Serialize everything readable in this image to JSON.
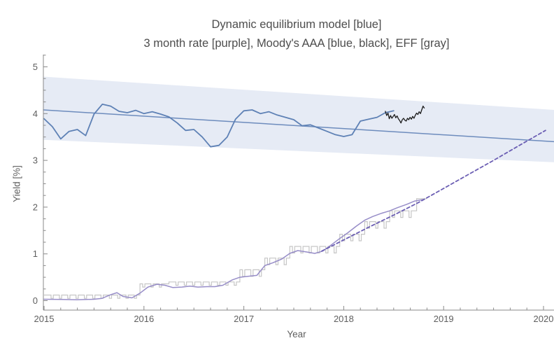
{
  "chart_data": {
    "type": "line",
    "title": "Dynamic equilibrium model [blue]",
    "subtitle": "3 month rate [purple], Moody's AAA [blue, black], EFF [gray]",
    "xlabel": "Year",
    "ylabel": "Yield [%]",
    "xlim": [
      2014.993,
      2020.105
    ],
    "ylim": [
      -0.2,
      5.26
    ],
    "x_major_ticks": [
      "2015",
      "2016",
      "2017",
      "2018",
      "2019",
      "2020"
    ],
    "x_major_values": [
      2015,
      2016,
      2017,
      2018,
      2019,
      2020
    ],
    "x_minor_step": 0.1666667,
    "y_major_ticks": [
      "0",
      "1",
      "2",
      "3",
      "4",
      "5"
    ],
    "y_major_values": [
      0,
      1,
      2,
      3,
      4,
      5
    ],
    "y_minor_step": 0.25,
    "grid": "off",
    "legend": "encoded in title text",
    "colors": {
      "band": "#e6ebf5",
      "trend_blue": "#6d8cbd",
      "moodys_blue": "#5e81b5",
      "moodys_black": "#1c1c1c",
      "rate3m_purple": "#978dc8",
      "model_purple_dashed": "#6c5fb4",
      "eff_gray": "#c6c6c6",
      "axis": "#8a8a8a",
      "tick_label": "#5f5f5f",
      "title_text": "#4d4d4d"
    },
    "band": {
      "name": "model-uncertainty-band",
      "x": [
        2014.993,
        2020.105
      ],
      "top": [
        4.79,
        4.08
      ],
      "bottom": [
        3.44,
        2.96
      ]
    },
    "trend": {
      "name": "dynamic-equilibrium-trend",
      "x": [
        2014.993,
        2020.105
      ],
      "y": [
        4.08,
        3.4
      ]
    },
    "moodys_monthly": {
      "name": "moodys-aaa-monthly",
      "start": 2015.0,
      "step": 0.0833333,
      "values": [
        3.89,
        3.72,
        3.46,
        3.62,
        3.66,
        3.53,
        3.99,
        4.2,
        4.16,
        4.05,
        4.02,
        4.07,
        4.0,
        4.04,
        3.99,
        3.93,
        3.8,
        3.64,
        3.66,
        3.5,
        3.29,
        3.32,
        3.5,
        3.88,
        4.06,
        4.08,
        4.0,
        4.04,
        3.97,
        3.92,
        3.87,
        3.74,
        3.76,
        3.69,
        3.62,
        3.55,
        3.51,
        3.55,
        3.84,
        3.88,
        3.92,
        4.02,
        4.06
      ]
    },
    "moodys_daily": {
      "name": "moodys-aaa-daily",
      "start": 2018.417,
      "step": 0.013,
      "values": [
        4.05,
        3.96,
        4.01,
        3.89,
        3.96,
        3.9,
        3.94,
        3.98,
        3.91,
        3.95,
        3.89,
        3.85,
        3.8,
        3.87,
        3.9,
        3.86,
        3.84,
        3.9,
        3.87,
        3.92,
        3.88,
        3.94,
        3.9,
        3.96,
        4.01,
        3.98,
        4.04,
        4.0,
        4.08,
        4.16,
        4.12
      ]
    },
    "rate3m": {
      "name": "three-month-rate",
      "points": [
        [
          2015.0,
          0.03
        ],
        [
          2015.17,
          0.025
        ],
        [
          2015.33,
          0.02
        ],
        [
          2015.5,
          0.03
        ],
        [
          2015.58,
          0.05
        ],
        [
          2015.67,
          0.13
        ],
        [
          2015.73,
          0.17
        ],
        [
          2015.79,
          0.09
        ],
        [
          2015.88,
          0.06
        ],
        [
          2015.96,
          0.16
        ],
        [
          2016.04,
          0.29
        ],
        [
          2016.13,
          0.35
        ],
        [
          2016.21,
          0.33
        ],
        [
          2016.29,
          0.28
        ],
        [
          2016.38,
          0.29
        ],
        [
          2016.46,
          0.31
        ],
        [
          2016.54,
          0.29
        ],
        [
          2016.63,
          0.3
        ],
        [
          2016.71,
          0.3
        ],
        [
          2016.79,
          0.33
        ],
        [
          2016.88,
          0.44
        ],
        [
          2016.96,
          0.5
        ],
        [
          2017.04,
          0.52
        ],
        [
          2017.13,
          0.54
        ],
        [
          2017.21,
          0.75
        ],
        [
          2017.29,
          0.81
        ],
        [
          2017.38,
          0.89
        ],
        [
          2017.46,
          1.01
        ],
        [
          2017.54,
          1.07
        ],
        [
          2017.63,
          1.04
        ],
        [
          2017.71,
          1.01
        ],
        [
          2017.79,
          1.06
        ],
        [
          2017.88,
          1.2
        ],
        [
          2017.96,
          1.33
        ],
        [
          2018.04,
          1.45
        ],
        [
          2018.13,
          1.6
        ],
        [
          2018.21,
          1.72
        ],
        [
          2018.29,
          1.8
        ],
        [
          2018.38,
          1.87
        ],
        [
          2018.46,
          1.92
        ],
        [
          2018.54,
          1.99
        ],
        [
          2018.63,
          2.06
        ],
        [
          2018.71,
          2.13
        ],
        [
          2018.79,
          2.16
        ]
      ]
    },
    "model_projection": {
      "name": "model-projection-dashed",
      "points": [
        [
          2017.78,
          1.06
        ],
        [
          2018.0,
          1.3
        ],
        [
          2018.25,
          1.57
        ],
        [
          2018.5,
          1.83
        ],
        [
          2018.75,
          2.1
        ],
        [
          2019.0,
          2.4
        ],
        [
          2019.25,
          2.7
        ],
        [
          2019.5,
          3.0
        ],
        [
          2019.75,
          3.31
        ],
        [
          2020.02,
          3.64
        ]
      ]
    },
    "eff_steps": {
      "name": "effective-fed-funds",
      "segments": [
        [
          2015.0,
          2015.96,
          0.12
        ],
        [
          2015.96,
          2016.25,
          0.36
        ],
        [
          2016.25,
          2016.96,
          0.4
        ],
        [
          2016.96,
          2017.21,
          0.66
        ],
        [
          2017.21,
          2017.46,
          0.91
        ],
        [
          2017.46,
          2017.96,
          1.16
        ],
        [
          2017.96,
          2018.21,
          1.42
        ],
        [
          2018.21,
          2018.46,
          1.69
        ],
        [
          2018.46,
          2018.73,
          1.92
        ],
        [
          2018.73,
          2018.83,
          2.18
        ]
      ]
    }
  }
}
